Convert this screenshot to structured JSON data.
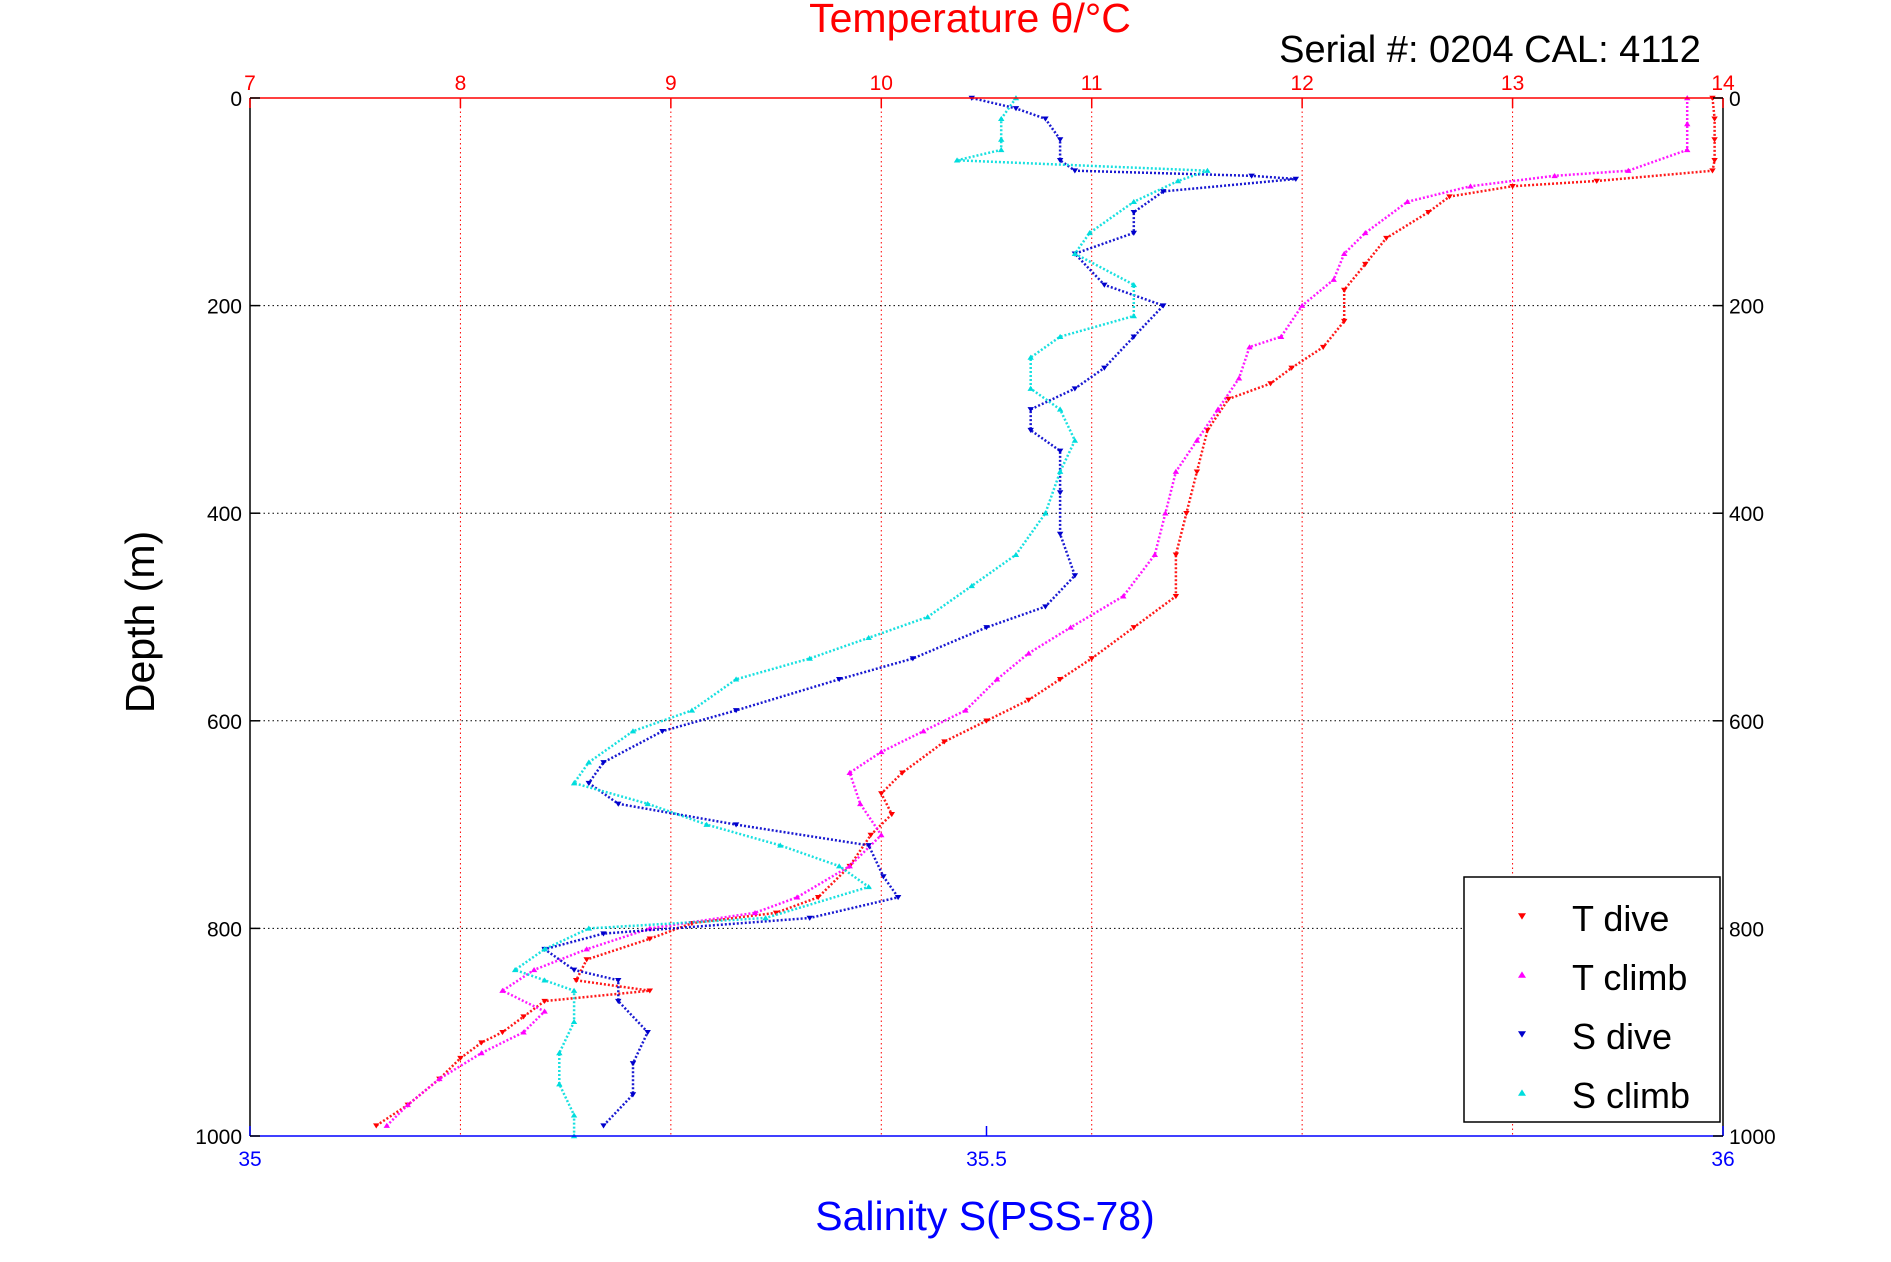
{
  "colors": {
    "temperature_axis": "#ff0000",
    "salinity_axis": "#0000ff",
    "depth_axis": "#000000",
    "t_dive": "#ff0000",
    "t_climb": "#ff00ff",
    "s_dive": "#0000cc",
    "s_climb": "#00dddd"
  },
  "chart_data": {
    "type": "scatter",
    "title": "Temperature θ/°C",
    "subtitle": "Serial #: 0204  CAL: 4112",
    "xlabel_bottom": "Salinity S(PSS-78)",
    "ylabel": "Depth (m)",
    "temperature_axis": {
      "lim": [
        7,
        14
      ],
      "ticks": [
        "7",
        "8",
        "9",
        "10",
        "11",
        "12",
        "13",
        "14"
      ]
    },
    "salinity_axis": {
      "lim": [
        35,
        36
      ],
      "ticks": [
        "35",
        "35.5",
        "36"
      ]
    },
    "depth_axis": {
      "lim": [
        0,
        1000
      ],
      "reversed": true,
      "ticks": [
        "0",
        "200",
        "400",
        "600",
        "800",
        "1000"
      ]
    },
    "grid": true,
    "legend_position": "bottom-right",
    "series": [
      {
        "name": "T dive",
        "axis": "temperature",
        "marker": "triangle-down",
        "points": [
          [
            13.95,
            0
          ],
          [
            13.96,
            20
          ],
          [
            13.96,
            40
          ],
          [
            13.96,
            60
          ],
          [
            13.95,
            70
          ],
          [
            13.4,
            80
          ],
          [
            13.0,
            85
          ],
          [
            12.7,
            95
          ],
          [
            12.6,
            110
          ],
          [
            12.4,
            135
          ],
          [
            12.3,
            160
          ],
          [
            12.2,
            185
          ],
          [
            12.2,
            215
          ],
          [
            12.1,
            240
          ],
          [
            11.95,
            260
          ],
          [
            11.85,
            275
          ],
          [
            11.65,
            290
          ],
          [
            11.55,
            320
          ],
          [
            11.5,
            360
          ],
          [
            11.45,
            400
          ],
          [
            11.4,
            440
          ],
          [
            11.4,
            480
          ],
          [
            11.2,
            510
          ],
          [
            11.0,
            540
          ],
          [
            10.85,
            560
          ],
          [
            10.7,
            580
          ],
          [
            10.5,
            600
          ],
          [
            10.3,
            620
          ],
          [
            10.1,
            650
          ],
          [
            10.0,
            670
          ],
          [
            10.05,
            690
          ],
          [
            9.95,
            710
          ],
          [
            9.85,
            740
          ],
          [
            9.7,
            770
          ],
          [
            9.5,
            785
          ],
          [
            9.1,
            795
          ],
          [
            8.9,
            810
          ],
          [
            8.6,
            830
          ],
          [
            8.55,
            850
          ],
          [
            8.9,
            860
          ],
          [
            8.4,
            870
          ],
          [
            8.3,
            885
          ],
          [
            8.2,
            900
          ],
          [
            8.1,
            910
          ],
          [
            8.0,
            925
          ],
          [
            7.9,
            945
          ],
          [
            7.75,
            970
          ],
          [
            7.6,
            990
          ]
        ]
      },
      {
        "name": "T climb",
        "axis": "temperature",
        "marker": "triangle-up",
        "points": [
          [
            13.83,
            0
          ],
          [
            13.83,
            25
          ],
          [
            13.83,
            50
          ],
          [
            13.55,
            70
          ],
          [
            13.2,
            75
          ],
          [
            12.8,
            85
          ],
          [
            12.5,
            100
          ],
          [
            12.3,
            130
          ],
          [
            12.2,
            150
          ],
          [
            12.15,
            175
          ],
          [
            12.0,
            200
          ],
          [
            11.9,
            230
          ],
          [
            11.75,
            240
          ],
          [
            11.7,
            270
          ],
          [
            11.6,
            300
          ],
          [
            11.5,
            330
          ],
          [
            11.4,
            360
          ],
          [
            11.35,
            400
          ],
          [
            11.3,
            440
          ],
          [
            11.15,
            480
          ],
          [
            10.9,
            510
          ],
          [
            10.7,
            535
          ],
          [
            10.55,
            560
          ],
          [
            10.4,
            590
          ],
          [
            10.2,
            610
          ],
          [
            10.0,
            630
          ],
          [
            9.85,
            650
          ],
          [
            9.9,
            680
          ],
          [
            10.0,
            710
          ],
          [
            9.85,
            740
          ],
          [
            9.6,
            770
          ],
          [
            9.4,
            785
          ],
          [
            8.9,
            800
          ],
          [
            8.6,
            820
          ],
          [
            8.35,
            840
          ],
          [
            8.2,
            860
          ],
          [
            8.4,
            880
          ],
          [
            8.3,
            900
          ],
          [
            8.1,
            920
          ],
          [
            7.9,
            945
          ],
          [
            7.75,
            970
          ],
          [
            7.65,
            990
          ]
        ]
      },
      {
        "name": "S dive",
        "axis": "salinity",
        "marker": "triangle-down",
        "points": [
          [
            35.49,
            0
          ],
          [
            35.52,
            10
          ],
          [
            35.54,
            20
          ],
          [
            35.55,
            40
          ],
          [
            35.55,
            60
          ],
          [
            35.56,
            70
          ],
          [
            35.68,
            75
          ],
          [
            35.71,
            78
          ],
          [
            35.62,
            90
          ],
          [
            35.6,
            110
          ],
          [
            35.6,
            130
          ],
          [
            35.56,
            150
          ],
          [
            35.58,
            180
          ],
          [
            35.62,
            200
          ],
          [
            35.6,
            230
          ],
          [
            35.58,
            260
          ],
          [
            35.56,
            280
          ],
          [
            35.53,
            300
          ],
          [
            35.53,
            320
          ],
          [
            35.55,
            340
          ],
          [
            35.55,
            380
          ],
          [
            35.55,
            420
          ],
          [
            35.56,
            460
          ],
          [
            35.54,
            490
          ],
          [
            35.5,
            510
          ],
          [
            35.45,
            540
          ],
          [
            35.4,
            560
          ],
          [
            35.33,
            590
          ],
          [
            35.28,
            610
          ],
          [
            35.24,
            640
          ],
          [
            35.23,
            660
          ],
          [
            35.25,
            680
          ],
          [
            35.33,
            700
          ],
          [
            35.42,
            720
          ],
          [
            35.43,
            750
          ],
          [
            35.44,
            770
          ],
          [
            35.38,
            790
          ],
          [
            35.24,
            805
          ],
          [
            35.2,
            820
          ],
          [
            35.22,
            840
          ],
          [
            35.25,
            850
          ],
          [
            35.25,
            870
          ],
          [
            35.27,
            900
          ],
          [
            35.26,
            930
          ],
          [
            35.26,
            960
          ],
          [
            35.24,
            990
          ]
        ]
      },
      {
        "name": "S climb",
        "axis": "salinity",
        "marker": "triangle-up",
        "points": [
          [
            35.52,
            0
          ],
          [
            35.51,
            20
          ],
          [
            35.51,
            40
          ],
          [
            35.51,
            50
          ],
          [
            35.48,
            60
          ],
          [
            35.65,
            70
          ],
          [
            35.63,
            80
          ],
          [
            35.6,
            100
          ],
          [
            35.57,
            130
          ],
          [
            35.56,
            150
          ],
          [
            35.6,
            180
          ],
          [
            35.6,
            210
          ],
          [
            35.55,
            230
          ],
          [
            35.53,
            250
          ],
          [
            35.53,
            280
          ],
          [
            35.55,
            300
          ],
          [
            35.56,
            330
          ],
          [
            35.55,
            360
          ],
          [
            35.54,
            400
          ],
          [
            35.52,
            440
          ],
          [
            35.49,
            470
          ],
          [
            35.46,
            500
          ],
          [
            35.42,
            520
          ],
          [
            35.38,
            540
          ],
          [
            35.33,
            560
          ],
          [
            35.3,
            590
          ],
          [
            35.26,
            610
          ],
          [
            35.23,
            640
          ],
          [
            35.22,
            660
          ],
          [
            35.27,
            680
          ],
          [
            35.31,
            700
          ],
          [
            35.36,
            720
          ],
          [
            35.4,
            740
          ],
          [
            35.42,
            760
          ],
          [
            35.35,
            790
          ],
          [
            35.23,
            800
          ],
          [
            35.2,
            820
          ],
          [
            35.18,
            840
          ],
          [
            35.2,
            850
          ],
          [
            35.22,
            860
          ],
          [
            35.22,
            890
          ],
          [
            35.21,
            920
          ],
          [
            35.21,
            950
          ],
          [
            35.22,
            980
          ],
          [
            35.22,
            1000
          ]
        ]
      }
    ]
  }
}
